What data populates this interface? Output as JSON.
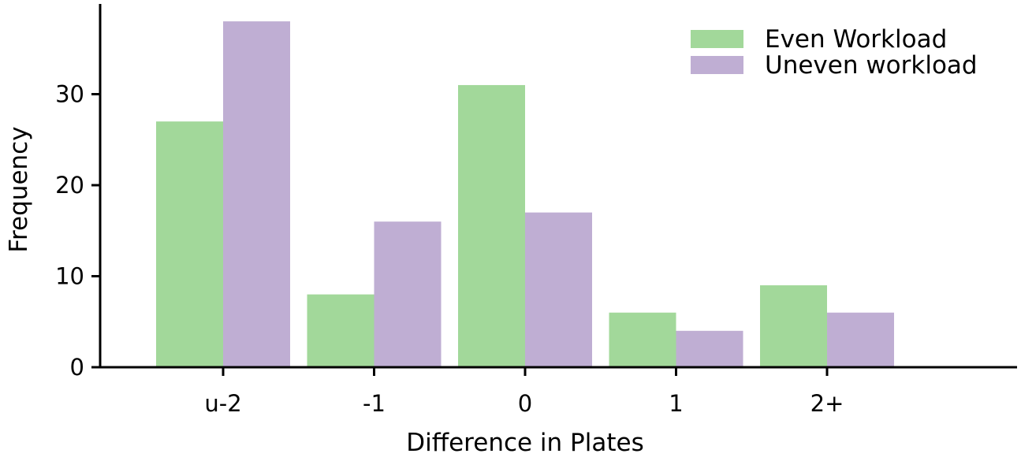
{
  "chart_data": {
    "type": "bar",
    "title": "",
    "xlabel": "Difference in Plates",
    "ylabel": "Frequency",
    "categories": [
      "u-2",
      "-1",
      "0",
      "1",
      "2+"
    ],
    "series": [
      {
        "name": "Even Workload",
        "color": "#a2d89a",
        "values": [
          27,
          8,
          31,
          6,
          9
        ]
      },
      {
        "name": "Uneven workload",
        "color": "#bfaed3",
        "values": [
          38,
          16,
          17,
          4,
          6
        ]
      }
    ],
    "ylim": [
      0,
      38
    ],
    "yticks": [
      "0",
      "10",
      "20",
      "30"
    ],
    "grid": false,
    "legend_position": "top-right"
  }
}
